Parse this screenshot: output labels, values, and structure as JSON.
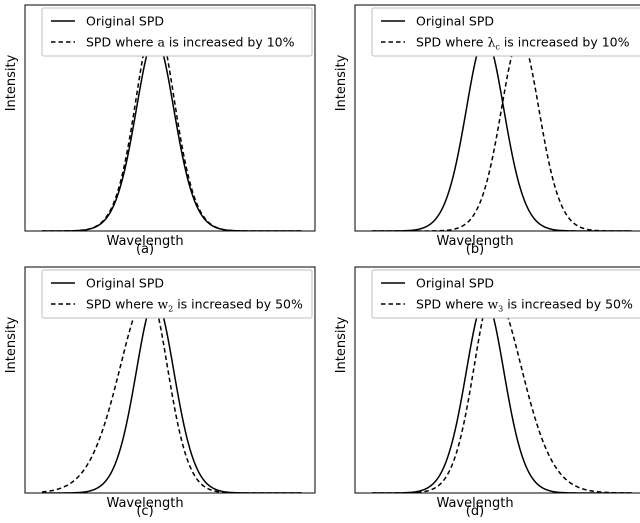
{
  "chart_data": [
    {
      "type": "line",
      "xlabel": "Wavelength",
      "ylabel": "Intensity",
      "caption": "(a)",
      "legend": {
        "placement": "top-right",
        "entries": [
          {
            "style": "solid",
            "pre": "Original SPD",
            "sym": "",
            "sub": "",
            "post": ""
          },
          {
            "style": "dashed",
            "pre": "SPD where ",
            "sym": "a",
            "sub": "",
            "post": " is increased by 10%"
          }
        ]
      },
      "xlim": [
        0,
        1
      ],
      "ylim": [
        0,
        1.17
      ],
      "series": [
        {
          "style": "solid",
          "a": 1.0,
          "c": 0.435,
          "w2": 0.093,
          "w3": 0.093
        },
        {
          "style": "dashed",
          "a": 1.1,
          "c": 0.435,
          "w2": 0.093,
          "w3": 0.093
        }
      ]
    },
    {
      "type": "line",
      "xlabel": "Wavelength",
      "ylabel": "Intensity",
      "caption": "(b)",
      "legend": {
        "placement": "top-right",
        "entries": [
          {
            "style": "solid",
            "pre": "Original SPD",
            "sym": "",
            "sub": "",
            "post": ""
          },
          {
            "style": "dashed",
            "pre": "SPD where ",
            "sym": "λ",
            "sub": "c",
            "post": " is increased by 10%"
          }
        ]
      },
      "xlim": [
        0,
        1
      ],
      "ylim": [
        0,
        1.17
      ],
      "series": [
        {
          "style": "solid",
          "a": 1.0,
          "c": 0.435,
          "w2": 0.093,
          "w3": 0.093
        },
        {
          "style": "dashed",
          "a": 1.0,
          "c": 0.57,
          "w2": 0.093,
          "w3": 0.093
        }
      ]
    },
    {
      "type": "line",
      "xlabel": "Wavelength",
      "ylabel": "Intensity",
      "caption": "(c)",
      "legend": {
        "placement": "top-right",
        "entries": [
          {
            "style": "solid",
            "pre": "Original SPD",
            "sym": "",
            "sub": "",
            "post": ""
          },
          {
            "style": "dashed",
            "pre": "SPD where ",
            "sym": "w",
            "sub": "2",
            "post": " is increased by 50%"
          }
        ]
      },
      "xlim": [
        0,
        1
      ],
      "ylim": [
        0,
        1.17
      ],
      "series": [
        {
          "style": "solid",
          "a": 1.0,
          "c": 0.435,
          "w2": 0.093,
          "w3": 0.093
        },
        {
          "style": "dashed",
          "a": 1.04,
          "c": 0.41,
          "w2": 0.14,
          "w3": 0.093
        }
      ]
    },
    {
      "type": "line",
      "xlabel": "Wavelength",
      "ylabel": "Intensity",
      "caption": "(d)",
      "legend": {
        "placement": "top-right",
        "entries": [
          {
            "style": "solid",
            "pre": "Original SPD",
            "sym": "",
            "sub": "",
            "post": ""
          },
          {
            "style": "dashed",
            "pre": "SPD where ",
            "sym": "w",
            "sub": "3",
            "post": " is increased by 50%"
          }
        ]
      },
      "xlim": [
        0,
        1
      ],
      "ylim": [
        0,
        1.17
      ],
      "series": [
        {
          "style": "solid",
          "a": 1.0,
          "c": 0.435,
          "w2": 0.093,
          "w3": 0.093
        },
        {
          "style": "dashed",
          "a": 1.04,
          "c": 0.465,
          "w2": 0.093,
          "w3": 0.14
        }
      ]
    }
  ]
}
